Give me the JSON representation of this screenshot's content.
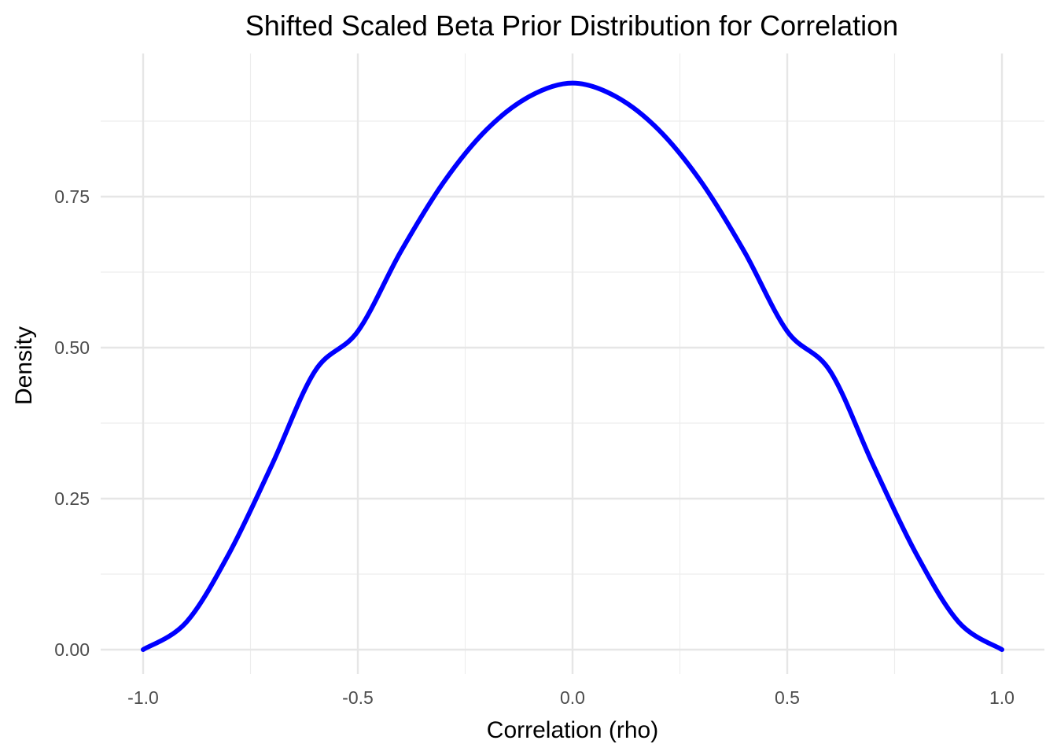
{
  "chart_data": {
    "type": "line",
    "title": "Shifted Scaled Beta Prior Distribution for Correlation",
    "xlabel": "Correlation (rho)",
    "ylabel": "Density",
    "xlim": [
      -1.0,
      1.0
    ],
    "ylim": [
      0,
      0.94
    ],
    "x_ticks": [
      "-1.0",
      "-0.5",
      "0.0",
      "0.5",
      "1.0"
    ],
    "y_ticks": [
      "0.00",
      "0.25",
      "0.50",
      "0.75"
    ],
    "grid": true,
    "series": [
      {
        "color": "#0000ff",
        "x": [
          -1.0,
          -0.9,
          -0.8,
          -0.7,
          -0.6,
          -0.5,
          -0.4,
          -0.3,
          -0.2,
          -0.1,
          0.0,
          0.1,
          0.2,
          0.3,
          0.4,
          0.5,
          0.6,
          0.7,
          0.8,
          0.9,
          1.0
        ],
        "y": [
          0.0,
          0.045,
          0.159,
          0.306,
          0.461,
          0.527,
          0.659,
          0.774,
          0.861,
          0.916,
          0.938,
          0.916,
          0.861,
          0.774,
          0.659,
          0.527,
          0.461,
          0.306,
          0.159,
          0.045,
          0.0
        ]
      }
    ]
  }
}
